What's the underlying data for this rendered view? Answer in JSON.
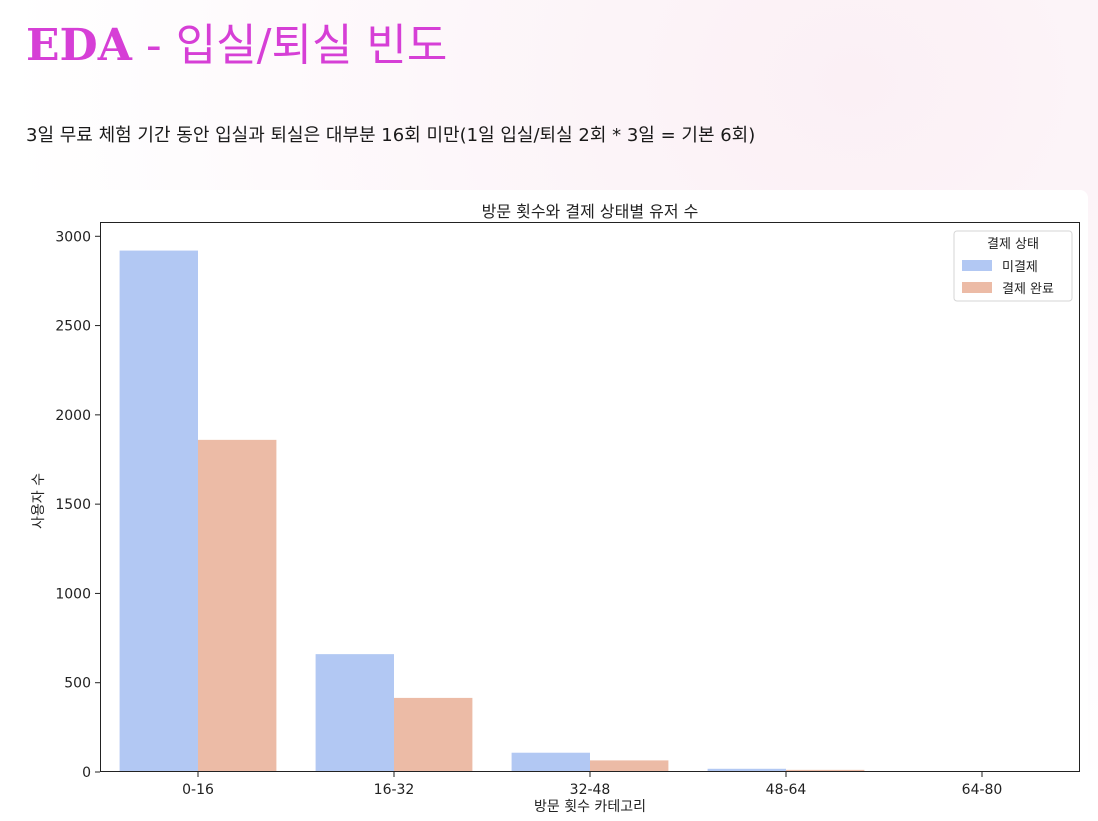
{
  "header": {
    "title_strong": "EDA",
    "title_rest": " - 입실/퇴실 빈도"
  },
  "description": "3일 무료 체험 기간 동안 입실과 퇴실은 대부분 16회 미만(1일 입실/퇴실 2회 * 3일 = 기본 6회)",
  "chart_data": {
    "type": "bar",
    "title": "방문 횟수와 결제 상태별 유저 수",
    "xlabel": "방문 횟수 카테고리",
    "ylabel": "사용자 수",
    "categories": [
      "0-16",
      "16-32",
      "32-48",
      "48-64",
      "64-80"
    ],
    "series": [
      {
        "name": "미결제",
        "color": "#b2c8f3",
        "values": [
          2920,
          660,
          108,
          18,
          4
        ]
      },
      {
        "name": "결제 완료",
        "color": "#ecbba6",
        "values": [
          1860,
          415,
          65,
          12,
          3
        ]
      }
    ],
    "ylim": [
      0,
      3080
    ],
    "yticks": [
      0,
      500,
      1000,
      1500,
      2000,
      2500,
      3000
    ],
    "legend_title": "결제 상태",
    "legend_position": "top-right",
    "grid": false
  }
}
